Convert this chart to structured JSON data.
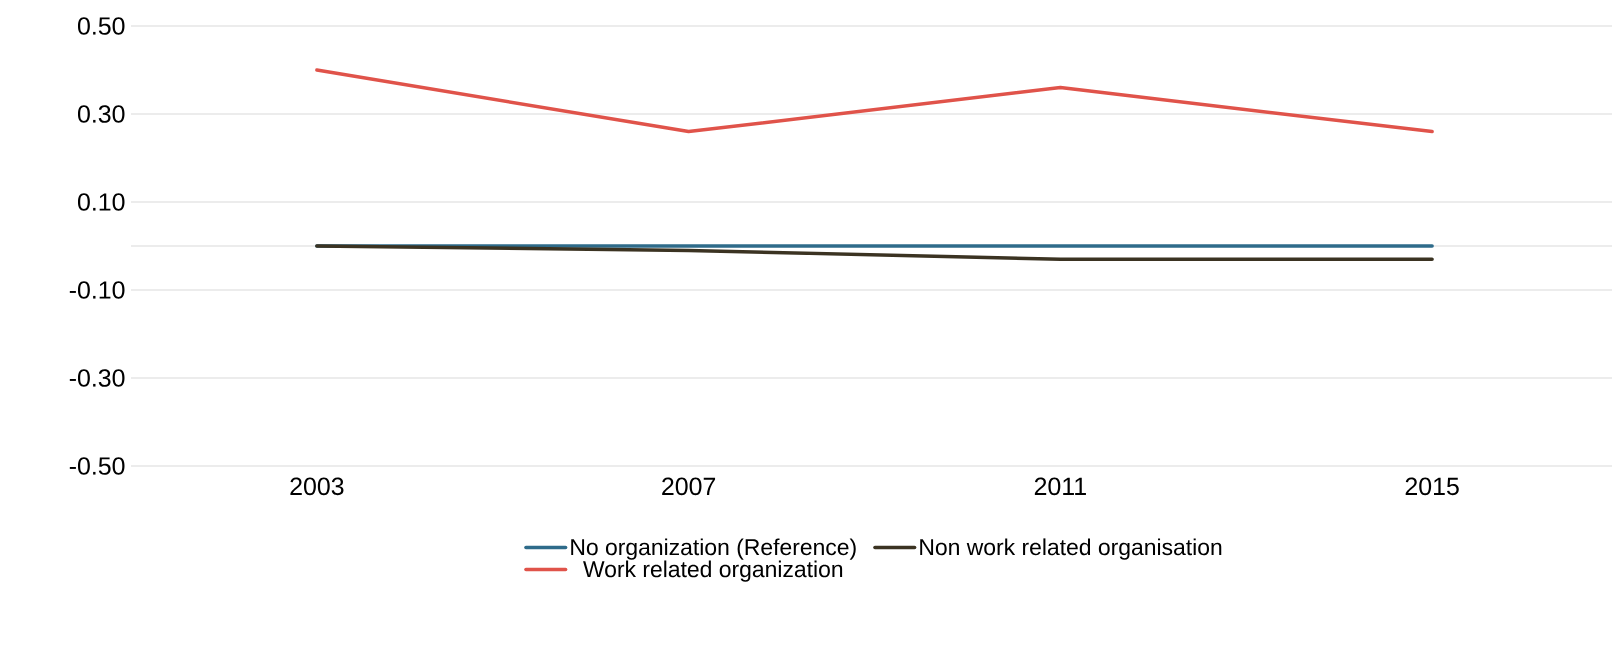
{
  "chart_data": {
    "type": "line",
    "categories": [
      "2003",
      "2007",
      "2011",
      "2015"
    ],
    "series": [
      {
        "name": "No organization (Reference)",
        "color": "#2e6b8a",
        "values": [
          0,
          0,
          0,
          0
        ]
      },
      {
        "name": "Non work related organisation",
        "color": "#3b3322",
        "values": [
          0,
          -0.01,
          -0.03,
          -0.03
        ]
      },
      {
        "name": "Work related organization",
        "color": "#e0534a",
        "values": [
          0.4,
          0.26,
          0.36,
          0.26
        ]
      }
    ],
    "ylim": [
      -0.5,
      0.5
    ],
    "yticks": [
      {
        "value": -0.5,
        "label": "-0.50"
      },
      {
        "value": -0.3,
        "label": "-0.30"
      },
      {
        "value": -0.1,
        "label": "-0.10"
      },
      {
        "value": 0.1,
        "label": "0.10"
      },
      {
        "value": 0.3,
        "label": "0.30"
      },
      {
        "value": 0.5,
        "label": "0.50"
      }
    ],
    "ref_lines": [
      {
        "axis": "y",
        "value": 0,
        "color": "#d9d9d9"
      }
    ],
    "grid": "y",
    "legend": "bottom",
    "marker": "none",
    "line_style": "solid"
  }
}
